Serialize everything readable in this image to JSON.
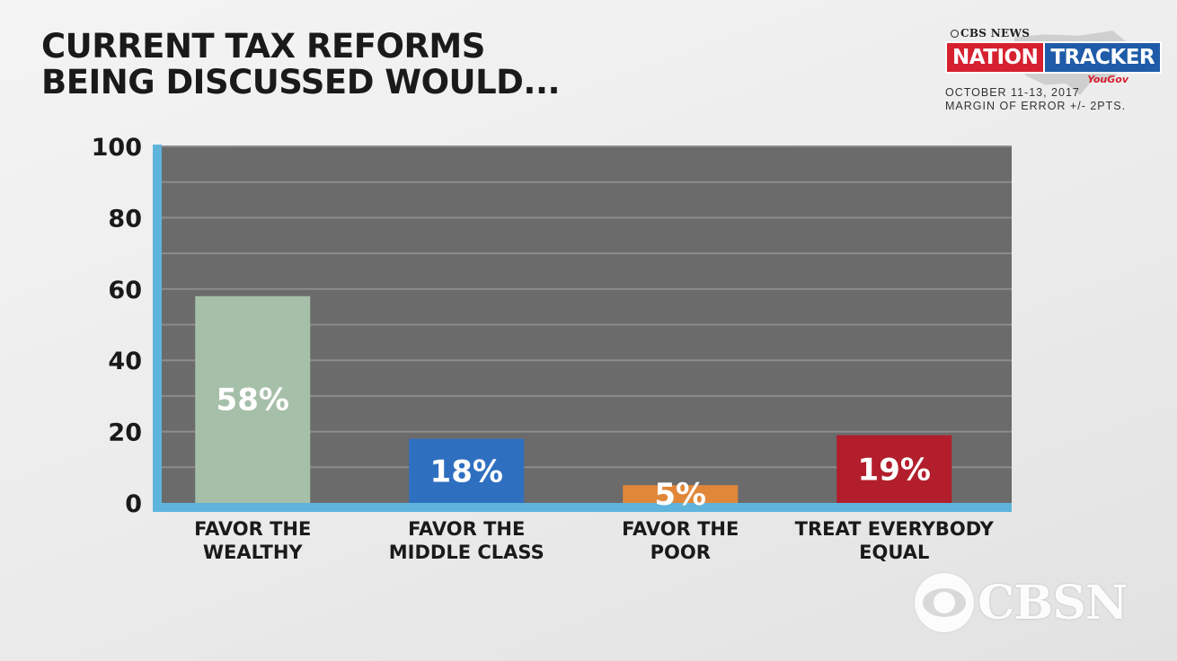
{
  "title_lines": [
    "CURRENT TAX REFORMS",
    "BEING DISCUSSED WOULD..."
  ],
  "tracker": {
    "network": "CBS NEWS",
    "brand_left": "NATION",
    "brand_right": "TRACKER",
    "pollster": "YouGov",
    "date": "OCTOBER 11-13, 2017",
    "margin": "MARGIN OF ERROR +/- 2PTS."
  },
  "watermark": {
    "text": "CBSN",
    "icon": "cbs-eye-icon"
  },
  "colors": {
    "plot_bg": "#6b6b6b",
    "axis": "#5fb4dc",
    "gridline": "#8c8c8c"
  },
  "chart_data": {
    "type": "bar",
    "title": "CURRENT TAX REFORMS BEING DISCUSSED WOULD...",
    "categories": [
      [
        "FAVOR THE",
        "WEALTHY"
      ],
      [
        "FAVOR THE",
        "MIDDLE CLASS"
      ],
      [
        "FAVOR THE",
        "POOR"
      ],
      [
        "TREAT EVERYBODY",
        "EQUAL"
      ]
    ],
    "values": [
      58,
      18,
      5,
      19
    ],
    "value_labels": [
      "58%",
      "18%",
      "5%",
      "19%"
    ],
    "bar_colors": [
      "#a6bfa9",
      "#2f6fc0",
      "#e0873a",
      "#b21e2c"
    ],
    "ylim": [
      0,
      100
    ],
    "yticks": [
      0,
      20,
      40,
      60,
      80,
      100
    ],
    "grid": true,
    "xlabel": "",
    "ylabel": ""
  }
}
